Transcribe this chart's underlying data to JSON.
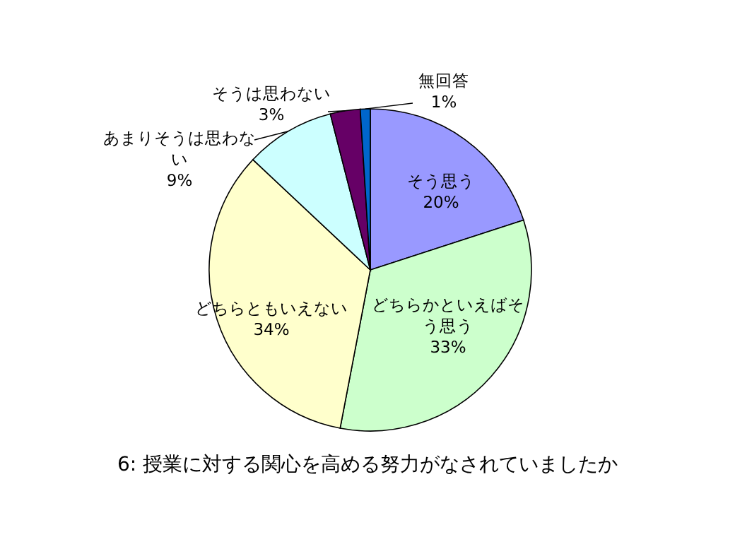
{
  "chart_data": {
    "type": "pie",
    "title": "6: 授業に対する関心を高める努力がなされていましたか",
    "categories": [
      "そう思う",
      "どちらかといえばそう思う",
      "どちらともいえない",
      "あまりそうは思わない",
      "そうは思わない",
      "無回答"
    ],
    "values": [
      20,
      33,
      34,
      9,
      3,
      1
    ],
    "colors": [
      "#9999ff",
      "#ccffcc",
      "#ffffcc",
      "#ccffff",
      "#660066",
      "#0066cc"
    ],
    "value_labels": [
      "20%",
      "33%",
      "34%",
      "9%",
      "3%",
      "1%"
    ]
  }
}
